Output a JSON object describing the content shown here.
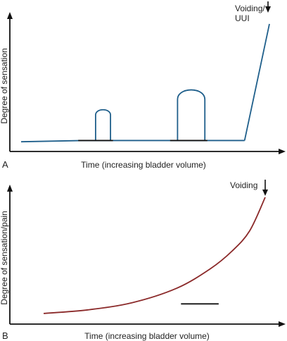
{
  "colors": {
    "axis": "#111111",
    "series_a": "#1f5f8b",
    "series_b": "#8b2a2a"
  },
  "chart_data": [
    {
      "panel_label": "A",
      "type": "line",
      "xlabel": "Time (increasing bladder volume)",
      "ylabel": "Degree of sensation",
      "annotation": [
        "Voiding/",
        "UUI"
      ],
      "xlim": [
        0,
        100
      ],
      "ylim": [
        0,
        100
      ],
      "baseline": [
        {
          "x": 0,
          "y": 5
        },
        {
          "x": 25,
          "y": 6
        },
        {
          "x": 31,
          "y": 6
        },
        {
          "x": 62,
          "y": 6
        },
        {
          "x": 73,
          "y": 6
        },
        {
          "x": 90,
          "y": 6
        }
      ],
      "bumps": [
        {
          "x_start": 30,
          "x_end": 36,
          "peak": 32
        },
        {
          "x_start": 63,
          "x_end": 74,
          "peak": 49
        }
      ],
      "rise": [
        {
          "x": 90,
          "y": 6
        },
        {
          "x": 100,
          "y": 100
        }
      ],
      "segments": [
        {
          "x0": 23,
          "x1": 37,
          "y": 6
        },
        {
          "x0": 60,
          "x1": 75,
          "y": 6
        }
      ],
      "arrow_x": 100
    },
    {
      "panel_label": "B",
      "type": "line",
      "xlabel": "Time (increasing bladder volume)",
      "ylabel": "Degree of sensation/pain",
      "annotation": [
        "Voiding"
      ],
      "xlim": [
        0,
        100
      ],
      "ylim": [
        0,
        100
      ],
      "curve": [
        {
          "x": 0,
          "y": 3
        },
        {
          "x": 20,
          "y": 6
        },
        {
          "x": 40,
          "y": 12
        },
        {
          "x": 60,
          "y": 24
        },
        {
          "x": 75,
          "y": 40
        },
        {
          "x": 85,
          "y": 55
        },
        {
          "x": 93,
          "y": 72
        },
        {
          "x": 100,
          "y": 100
        }
      ],
      "segments": [
        {
          "x0": 62,
          "x1": 79,
          "y": 11
        }
      ],
      "arrow_x": 100
    }
  ]
}
